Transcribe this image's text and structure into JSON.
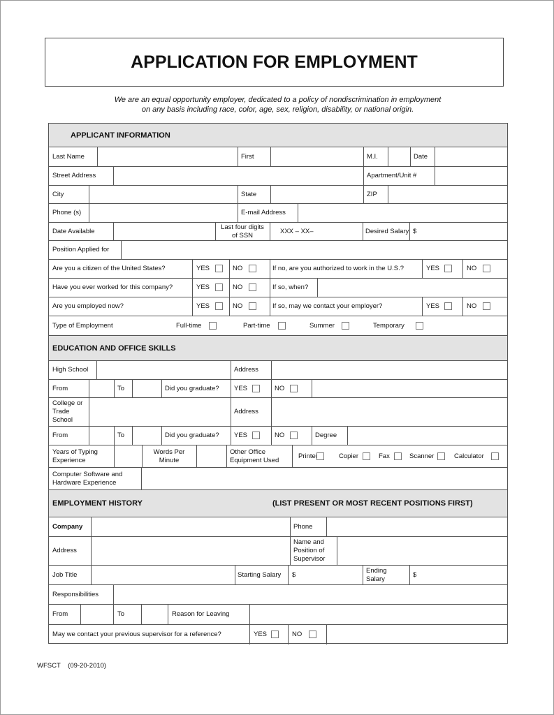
{
  "title": "APPLICATION FOR EMPLOYMENT",
  "intro": [
    "We are an equal opportunity employer, dedicated to a policy of nondiscrimination in employment",
    "on any basis including race, color, age, sex, religion, disability, or national origin."
  ],
  "yes": "YES",
  "no": "NO",
  "applicant": {
    "heading": "APPLICANT INFORMATION",
    "last_name": "Last Name",
    "first": "First",
    "mi": "M.I.",
    "date": "Date",
    "street": "Street Address",
    "apt": "Apartment/Unit #",
    "city": "City",
    "state": "State",
    "zip": "ZIP",
    "phone": "Phone (s)",
    "email": "E-mail Address",
    "date_available": "Date Available",
    "ssn_label": "Last four digits\nof SSN",
    "ssn_value": "XXX – XX–",
    "desired_salary": "Desired Salary",
    "dollar": "$",
    "position": "Position Applied for",
    "citizen_q": "Are you a citizen of the United States?",
    "authorized_q": "If no, are you authorized to work in the U.S.?",
    "worked_q": "Have you ever worked for this company?",
    "if_so_when": "If so, when?",
    "employed_q": "Are you employed now?",
    "contact_q": "If so, may we contact your employer?",
    "type_employment": "Type of Employment",
    "full_time": "Full-time",
    "part_time": "Part-time",
    "summer": "Summer",
    "temporary": "Temporary"
  },
  "education": {
    "heading": "EDUCATION AND OFFICE SKILLS",
    "high_school": "High School",
    "address": "Address",
    "from": "From",
    "to": "To",
    "graduate": "Did you graduate?",
    "college": "College or\nTrade\nSchool",
    "degree": "Degree",
    "typing": "Years of Typing\nExperience",
    "wpm": "Words Per\nMinute",
    "equipment": "Other Office\nEquipment Used",
    "printer": "Printer",
    "copier": "Copier",
    "fax": "Fax",
    "scanner": "Scanner",
    "calculator": "Calculator",
    "software": "Computer Software and\nHardware Experience"
  },
  "employment": {
    "heading": "EMPLOYMENT HISTORY",
    "note": "(LIST PRESENT OR MOST RECENT POSITIONS FIRST)",
    "company": "Company",
    "phone": "Phone",
    "address": "Address",
    "supervisor": "Name and\nPosition of\nSupervisor",
    "job_title": "Job Title",
    "starting_salary": "Starting Salary",
    "dollar": "$",
    "ending_salary": "Ending\nSalary",
    "responsibilities": "Responsibilities",
    "from": "From",
    "to": "To",
    "reason": "Reason for Leaving",
    "reference_q": "May we contact your previous supervisor for a reference?"
  },
  "footer": "WFSCT    (09-20-2010)"
}
